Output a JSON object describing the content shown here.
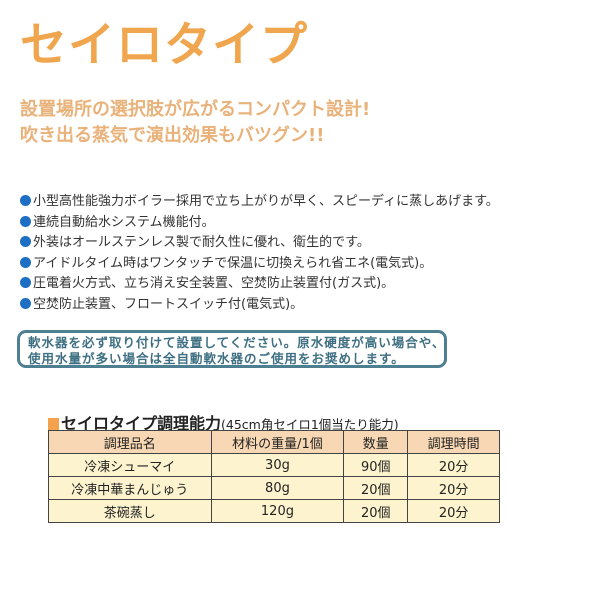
{
  "title": "セイロタイプ",
  "subtitle": [
    "設置場所の選択肢が広がるコンパクト設計!",
    "吹き出る蒸気で演出効果もバツグン!!"
  ],
  "features": [
    "小型高性能強力ボイラー採用で立ち上がりが早く、スピーディに蒸しあげます。",
    "連続自動給水システム機能付。",
    "外装はオールステンレス製で耐久性に優れ、衛生的です。",
    "アイドルタイム時はワンタッチで保温に切換えられ省エネ(電気式)。",
    "圧電着火方式、立ち消え安全装置、空焚防止装置付(ガス式)。",
    "空焚防止装置、フロートスイッチ付(電気式)。"
  ],
  "notice": [
    "軟水器を必ず取り付けて設置してください。原水硬度が高い場合や、",
    "使用水量が多い場合は全自動軟水器のご使用をお奨めします。"
  ],
  "table": {
    "heading": "セイロタイプ調理能力",
    "heading_note": "(45cm角セイロ1個当たり能力)",
    "columns": [
      "調理品名",
      "材料の重量/1個",
      "数量",
      "調理時間"
    ],
    "rows": [
      [
        "冷凍シューマイ",
        "30g",
        "90個",
        "20分"
      ],
      [
        "冷凍中華まんじゅう",
        "80g",
        "20個",
        "20分"
      ],
      [
        "茶碗蒸し",
        "120g",
        "20個",
        "20分"
      ]
    ]
  },
  "colors": {
    "title": "#f0a64e",
    "bullet": "#1d6fc4",
    "notice_border": "#4d7f91",
    "header_bg": "#f8d8b4",
    "cell_bg": "#fdf4cf"
  }
}
